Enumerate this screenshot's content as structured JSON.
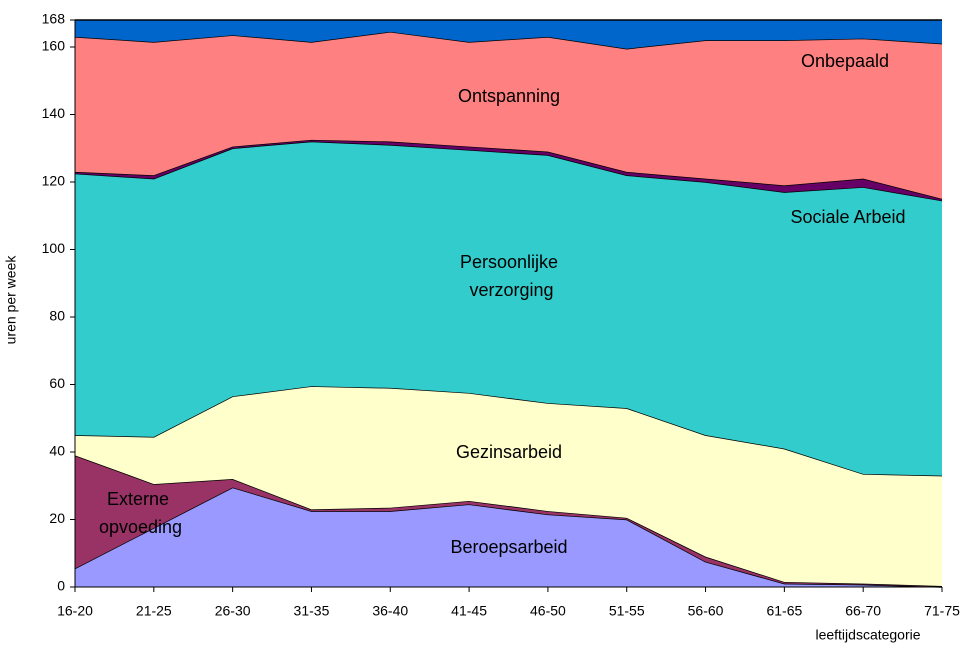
{
  "chart_data": {
    "type": "stacked_area",
    "y_label": "uren per week",
    "x_label": "leeftijdscategorie",
    "categories": [
      "16-20",
      "21-25",
      "26-30",
      "31-35",
      "36-40",
      "41-45",
      "46-50",
      "51-55",
      "56-60",
      "61-65",
      "66-70",
      "71-75"
    ],
    "series": [
      {
        "name": "Beroepsarbeid",
        "color": "#9999ff",
        "values": [
          5.5,
          17.5,
          29.5,
          22.5,
          22.5,
          24.5,
          21.5,
          20,
          7.5,
          1,
          0.7,
          0
        ]
      },
      {
        "name": "Externe opvoeding",
        "color": "#993366",
        "values": [
          33.5,
          13,
          2.5,
          0.5,
          1,
          1,
          1,
          0.5,
          1.5,
          0.5,
          0.3,
          0.3
        ]
      },
      {
        "name": "Gezinsarbeid",
        "color": "#ffffcc",
        "values": [
          6,
          14,
          24.5,
          36.5,
          35.5,
          32,
          32,
          32.5,
          36,
          39.5,
          32.5,
          32.7
        ]
      },
      {
        "name": "Persoonlijke verzorging",
        "color": "#33cccc",
        "values": [
          77.5,
          76.5,
          73.5,
          72.5,
          72,
          72,
          73.5,
          69,
          75,
          76,
          85,
          81.5
        ]
      },
      {
        "name": "Sociale Arbeid",
        "color": "#660066",
        "values": [
          0.5,
          1,
          0.5,
          0.5,
          1,
          1,
          1,
          1,
          1,
          2,
          2.5,
          0.5
        ]
      },
      {
        "name": "Ontspanning",
        "color": "#ff8080",
        "values": [
          40,
          39.5,
          33,
          29,
          32.5,
          31,
          34,
          36.5,
          41,
          43,
          41.5,
          46
        ]
      },
      {
        "name": "Onbepaald",
        "color": "#0066cc",
        "values": [
          5,
          6.5,
          4.5,
          6.5,
          3.5,
          6.5,
          5,
          8.5,
          6,
          6,
          5.5,
          7
        ]
      }
    ],
    "ylim": [
      0,
      168
    ],
    "yticks": [
      0,
      20,
      40,
      60,
      80,
      100,
      120,
      140,
      160,
      168
    ],
    "grid": false
  }
}
